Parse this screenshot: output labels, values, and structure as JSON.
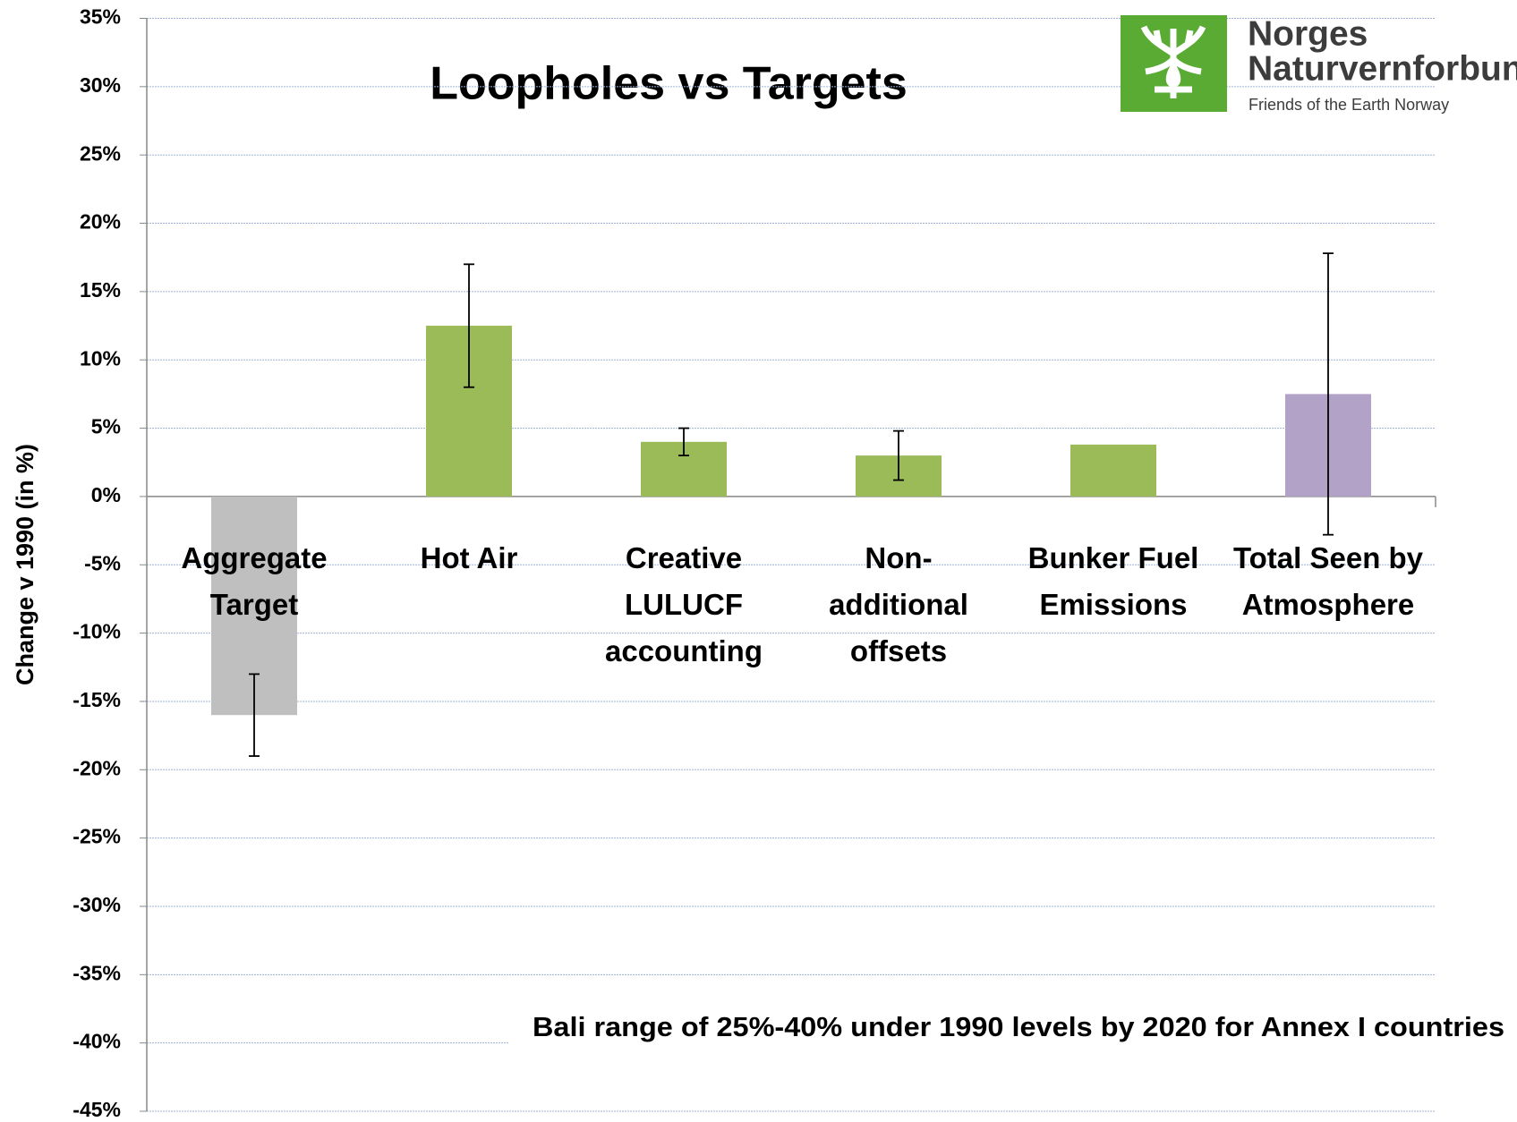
{
  "chart_data": {
    "type": "bar",
    "title": "Loopholes vs Targets",
    "y_label": "Change v 1990 (in %)",
    "categories": [
      "Aggregate\nTarget",
      "Hot Air",
      "Creative\nLULUCF\naccounting",
      "Non-\nadditional\noffsets",
      "Bunker Fuel\nEmissions",
      "Total Seen by\nAtmosphere"
    ],
    "values": [
      -16,
      12.5,
      4,
      3,
      3.8,
      7.5
    ],
    "errors": [
      3,
      4.5,
      1,
      1.8,
      null,
      10.3
    ],
    "colors": [
      "#bfbfbf",
      "#9bbb59",
      "#9bbb59",
      "#9bbb59",
      "#9bbb59",
      "#b3a2c7"
    ],
    "ylim": [
      -45,
      35
    ],
    "yticks": [
      {
        "value": -45,
        "label": "-45%"
      },
      {
        "value": -40,
        "label": "-40%"
      },
      {
        "value": -35,
        "label": "-35%"
      },
      {
        "value": -30,
        "label": "-30%"
      },
      {
        "value": -25,
        "label": "-25%"
      },
      {
        "value": -20,
        "label": "-20%"
      },
      {
        "value": -15,
        "label": "-15%"
      },
      {
        "value": -10,
        "label": "-10%"
      },
      {
        "value": -5,
        "label": "-5%"
      },
      {
        "value": 0,
        "label": "0%"
      },
      {
        "value": 5,
        "label": "5%"
      },
      {
        "value": 10,
        "label": "10%"
      },
      {
        "value": 15,
        "label": "15%"
      },
      {
        "value": 20,
        "label": "20%"
      },
      {
        "value": 25,
        "label": "25%"
      },
      {
        "value": 30,
        "label": "30%"
      },
      {
        "value": 35,
        "label": "35%"
      }
    ],
    "grid": true,
    "annotation": "Bali range of 25%-40% under 1990 levels by 2020 for Annex I countries"
  },
  "logo": {
    "name_line1": "Norges",
    "name_line2": "Naturvernforbund",
    "tagline": "Friends of the Earth Norway"
  }
}
